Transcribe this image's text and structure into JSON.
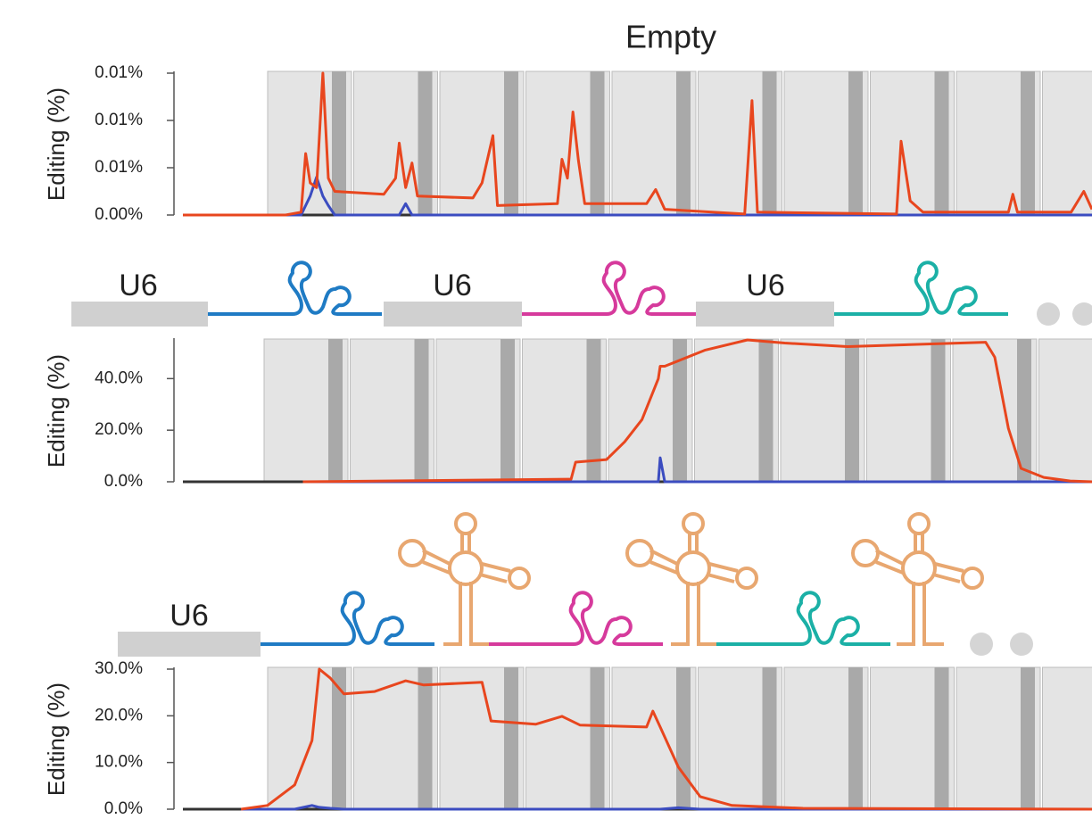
{
  "chart_data": [
    {
      "type": "line",
      "title": "Empty",
      "y_label": "Editing (%)",
      "x": [
        0,
        11.3,
        13.0,
        13.5,
        14.0,
        14.7,
        15.4,
        16.0,
        16.7,
        22.1,
        23.4,
        23.8,
        24.5,
        25.2,
        25.8,
        31.9,
        32.9,
        34.1,
        34.6,
        41.2,
        41.7,
        42.3,
        42.9,
        43.5,
        44.2,
        51.0,
        52.0,
        53.0,
        61.8,
        62.6,
        63.2,
        78.5,
        79.0,
        80.0,
        81.4,
        90.8,
        91.3,
        91.8,
        97.7,
        99.1,
        100
      ],
      "xlim": [
        0,
        100
      ],
      "series": [
        {
          "color": "#e8461e",
          "values": [
            0,
            0,
            0.0003,
            0.0065,
            0.0034,
            0.0029,
            0.015,
            0.0039,
            0.0025,
            0.0022,
            0.0039,
            0.0076,
            0.0029,
            0.0055,
            0.002,
            0.0018,
            0.0034,
            0.0084,
            0.001,
            0.0012,
            0.0059,
            0.0039,
            0.0109,
            0.0058,
            0.0012,
            0.0012,
            0.0027,
            0.0006,
            0.0001,
            0.0121,
            0.0003,
            0.0001,
            0.0078,
            0.0015,
            0.0003,
            0.0003,
            0.0022,
            0.0003,
            0.0003,
            0.0025,
            0.0006
          ]
        },
        {
          "color": "#3b4cc0",
          "values": [
            0,
            0,
            0,
            0.001,
            0.002,
            0.004,
            0.002,
            0.001,
            0,
            0,
            0,
            0,
            0.0012,
            0,
            0,
            0,
            0,
            0,
            0,
            0,
            0,
            0,
            0,
            0,
            0,
            0,
            0,
            0,
            0,
            0,
            0,
            0,
            0,
            0,
            0,
            0,
            0,
            0,
            0,
            0,
            0
          ]
        }
      ],
      "ylim": [
        0,
        0.015
      ],
      "yticks": [
        {
          "value": 0,
          "label": "0.00%"
        },
        {
          "value": 0.005,
          "label": "0.01%"
        },
        {
          "value": 0.01,
          "label": "0.01%"
        },
        {
          "value": 0.015,
          "label": "0.01%"
        }
      ]
    },
    {
      "type": "line",
      "y_label": "Editing (%)",
      "x": [
        13.2,
        42.7,
        43.2,
        46.6,
        48.6,
        50.5,
        52.3,
        52.5,
        53.0,
        57.4,
        62.1,
        66.2,
        73.1,
        88.3,
        89.3,
        90.8,
        92.2,
        94.7,
        97.6,
        100
      ],
      "xlim": [
        0,
        100
      ],
      "series": [
        {
          "color": "#e8461e",
          "values": [
            0,
            1.0,
            7.6,
            8.6,
            15.5,
            24.1,
            40.0,
            44.8,
            44.8,
            51.0,
            55.0,
            53.8,
            52.4,
            54.1,
            48.3,
            20.7,
            5.2,
            1.7,
            0.3,
            0
          ]
        },
        {
          "color": "#3b4cc0",
          "values": [
            0,
            0,
            0,
            0,
            0,
            0,
            0,
            9.3,
            0,
            0,
            0,
            0,
            0,
            0,
            0,
            0,
            0,
            0,
            0,
            0
          ]
        }
      ],
      "ylim": [
        0,
        55
      ],
      "yticks": [
        {
          "value": 0,
          "label": "0.0%"
        },
        {
          "value": 20,
          "label": "20.0%"
        },
        {
          "value": 40,
          "label": "40.0%"
        }
      ]
    },
    {
      "type": "line",
      "y_label": "Editing (%)",
      "x": [
        6.4,
        9.3,
        12.3,
        14.2,
        15.0,
        16.2,
        17.7,
        21.1,
        24.5,
        26.5,
        32.9,
        33.9,
        38.8,
        41.7,
        43.7,
        51.0,
        51.7,
        52.5,
        54.5,
        56.9,
        60.4,
        68.2,
        100
      ],
      "xlim": [
        0,
        100
      ],
      "series": [
        {
          "color": "#e8461e",
          "values": [
            0,
            0.8,
            5.2,
            14.7,
            30.0,
            28.1,
            24.7,
            25.2,
            27.5,
            26.6,
            27.2,
            18.9,
            18.2,
            19.9,
            18.0,
            17.6,
            21.0,
            17.6,
            9.0,
            2.7,
            0.8,
            0.2,
            0
          ]
        },
        {
          "color": "#3b4cc0",
          "values": [
            0,
            0,
            0,
            0.8,
            0.4,
            0.2,
            0,
            0,
            0,
            0,
            0,
            0,
            0,
            0,
            0,
            0,
            0,
            0,
            0.3,
            0,
            0,
            0,
            0
          ]
        }
      ],
      "ylim": [
        0,
        30
      ],
      "yticks": [
        {
          "value": 0,
          "label": "0.0%"
        },
        {
          "value": 10,
          "label": "10.0%"
        },
        {
          "value": 20,
          "label": "20.0%"
        },
        {
          "value": 30,
          "label": "30.0%"
        }
      ]
    }
  ],
  "diagrams": [
    {
      "labels": [
        "U6",
        "U6",
        "U6"
      ]
    },
    {
      "labels": [
        "U6"
      ]
    }
  ]
}
